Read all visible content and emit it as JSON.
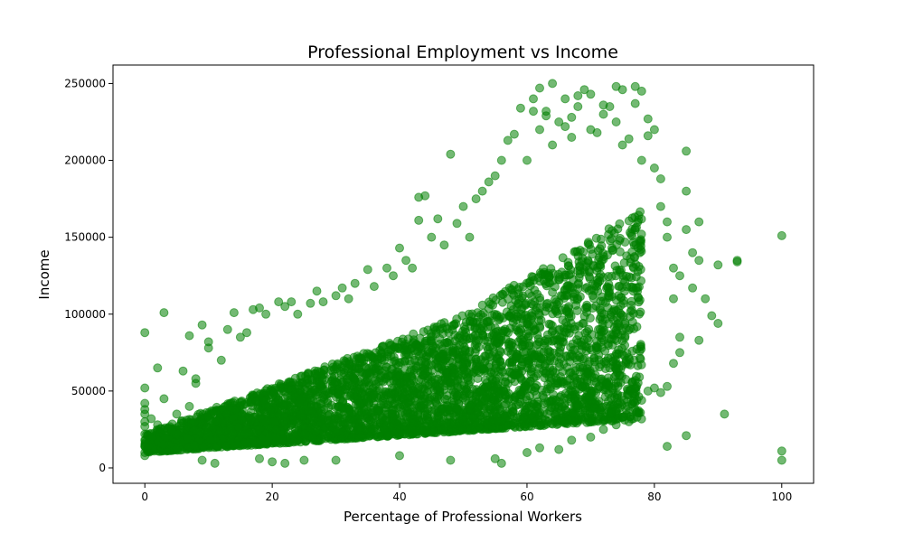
{
  "chart_data": {
    "type": "scatter",
    "title": "Professional Employment vs Income",
    "xlabel": "Percentage of Professional Workers",
    "ylabel": "Income",
    "xlim": [
      -5,
      105
    ],
    "ylim": [
      -10000,
      262000
    ],
    "xticks": [
      0,
      20,
      40,
      60,
      80,
      100
    ],
    "yticks": [
      0,
      50000,
      100000,
      150000,
      200000,
      250000
    ],
    "grid": false,
    "legend": "none",
    "marker_color": "#008000",
    "marker_alpha": 0.55,
    "series": [
      {
        "points": [
          [
            0,
            88000
          ],
          [
            0,
            52000
          ],
          [
            0,
            42000
          ],
          [
            0,
            38000
          ],
          [
            0,
            35000
          ],
          [
            0,
            30000
          ],
          [
            0,
            27000
          ],
          [
            0,
            22000
          ],
          [
            0,
            18000
          ],
          [
            0,
            14000
          ],
          [
            0,
            10000
          ],
          [
            0,
            8000
          ],
          [
            1,
            32000
          ],
          [
            1,
            20000
          ],
          [
            2,
            65000
          ],
          [
            2,
            28000
          ],
          [
            3,
            101000
          ],
          [
            3,
            45000
          ],
          [
            3,
            15000
          ],
          [
            5,
            35000
          ],
          [
            5,
            12000
          ],
          [
            6,
            63000
          ],
          [
            7,
            86000
          ],
          [
            7,
            40000
          ],
          [
            8,
            58000
          ],
          [
            8,
            55000
          ],
          [
            9,
            93000
          ],
          [
            9,
            5000
          ],
          [
            10,
            82000
          ],
          [
            10,
            78000
          ],
          [
            11,
            3000
          ],
          [
            12,
            70000
          ],
          [
            13,
            90000
          ],
          [
            14,
            101000
          ],
          [
            15,
            85000
          ],
          [
            16,
            88000
          ],
          [
            17,
            103000
          ],
          [
            18,
            104000
          ],
          [
            19,
            100000
          ],
          [
            20,
            4000
          ],
          [
            21,
            108000
          ],
          [
            22,
            105000
          ],
          [
            23,
            108000
          ],
          [
            24,
            100000
          ],
          [
            25,
            5000
          ],
          [
            26,
            107000
          ],
          [
            27,
            115000
          ],
          [
            28,
            108000
          ],
          [
            30,
            112000
          ],
          [
            31,
            117000
          ],
          [
            32,
            110000
          ],
          [
            33,
            120000
          ],
          [
            35,
            129000
          ],
          [
            36,
            118000
          ],
          [
            38,
            130000
          ],
          [
            39,
            125000
          ],
          [
            40,
            143000
          ],
          [
            41,
            135000
          ],
          [
            42,
            130000
          ],
          [
            43,
            161000
          ],
          [
            43,
            176000
          ],
          [
            44,
            177000
          ],
          [
            45,
            150000
          ],
          [
            46,
            162000
          ],
          [
            47,
            145000
          ],
          [
            48,
            204000
          ],
          [
            49,
            159000
          ],
          [
            50,
            170000
          ],
          [
            51,
            150000
          ],
          [
            52,
            175000
          ],
          [
            53,
            180000
          ],
          [
            54,
            186000
          ],
          [
            55,
            190000
          ],
          [
            56,
            3000
          ],
          [
            56,
            200000
          ],
          [
            57,
            213000
          ],
          [
            58,
            217000
          ],
          [
            59,
            234000
          ],
          [
            60,
            200000
          ],
          [
            61,
            240000
          ],
          [
            61,
            232000
          ],
          [
            62,
            247000
          ],
          [
            62,
            220000
          ],
          [
            63,
            229000
          ],
          [
            63,
            232000
          ],
          [
            64,
            210000
          ],
          [
            64,
            250000
          ],
          [
            65,
            225000
          ],
          [
            65,
            12000
          ],
          [
            66,
            240000
          ],
          [
            66,
            222000
          ],
          [
            67,
            228000
          ],
          [
            67,
            215000
          ],
          [
            68,
            235000
          ],
          [
            68,
            242000
          ],
          [
            69,
            246000
          ],
          [
            70,
            220000
          ],
          [
            70,
            243000
          ],
          [
            71,
            218000
          ],
          [
            72,
            236000
          ],
          [
            72,
            230000
          ],
          [
            73,
            235000
          ],
          [
            74,
            248000
          ],
          [
            74,
            225000
          ],
          [
            75,
            246000
          ],
          [
            75,
            210000
          ],
          [
            76,
            214000
          ],
          [
            77,
            237000
          ],
          [
            77,
            248000
          ],
          [
            78,
            245000
          ],
          [
            78,
            200000
          ],
          [
            79,
            227000
          ],
          [
            79,
            216000
          ],
          [
            80,
            220000
          ],
          [
            80,
            195000
          ],
          [
            81,
            188000
          ],
          [
            81,
            170000
          ],
          [
            82,
            160000
          ],
          [
            82,
            150000
          ],
          [
            82,
            14000
          ],
          [
            83,
            130000
          ],
          [
            83,
            110000
          ],
          [
            84,
            125000
          ],
          [
            84,
            85000
          ],
          [
            85,
            206000
          ],
          [
            85,
            180000
          ],
          [
            85,
            155000
          ],
          [
            85,
            21000
          ],
          [
            86,
            140000
          ],
          [
            86,
            117000
          ],
          [
            87,
            160000
          ],
          [
            87,
            135000
          ],
          [
            87,
            83000
          ],
          [
            88,
            110000
          ],
          [
            89,
            99000
          ],
          [
            90,
            132000
          ],
          [
            90,
            94000
          ],
          [
            91,
            35000
          ],
          [
            93,
            135000
          ],
          [
            93,
            134000
          ],
          [
            100,
            151000
          ],
          [
            100,
            11000
          ],
          [
            100,
            5000
          ],
          [
            18,
            6000
          ],
          [
            22,
            3000
          ],
          [
            30,
            5000
          ],
          [
            40,
            8000
          ],
          [
            48,
            5000
          ],
          [
            55,
            6000
          ],
          [
            60,
            10000
          ],
          [
            62,
            13000
          ],
          [
            67,
            18000
          ],
          [
            70,
            20000
          ],
          [
            72,
            25000
          ],
          [
            74,
            28000
          ],
          [
            75,
            33000
          ],
          [
            76,
            30000
          ],
          [
            77,
            38000
          ],
          [
            78,
            44000
          ],
          [
            79,
            50000
          ],
          [
            80,
            52000
          ],
          [
            81,
            49000
          ],
          [
            82,
            53000
          ],
          [
            83,
            68000
          ],
          [
            84,
            75000
          ]
        ]
      }
    ]
  }
}
